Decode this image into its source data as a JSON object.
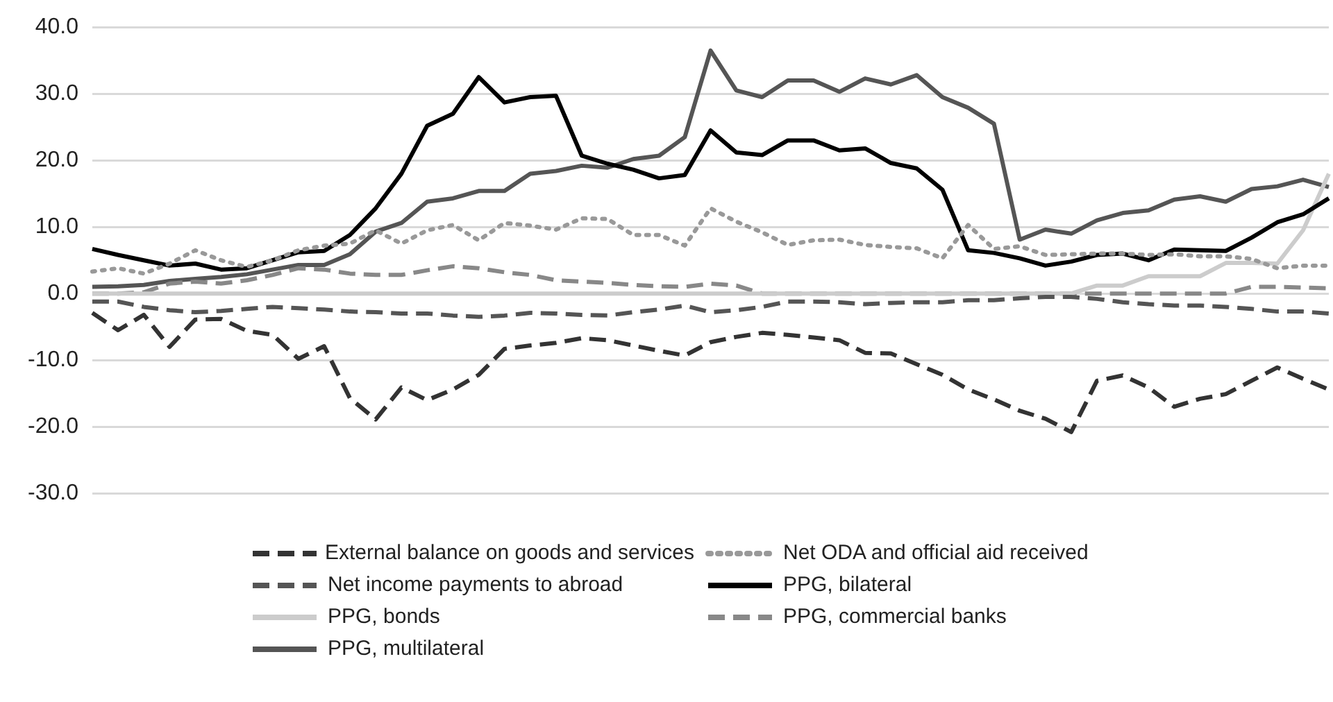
{
  "chart_data": {
    "type": "line",
    "categories": [
      null,
      null,
      null,
      null,
      null,
      null,
      null,
      null,
      null,
      null,
      null,
      null,
      null,
      null,
      null,
      null,
      null,
      null,
      null,
      null,
      null,
      null,
      null,
      null,
      null,
      null,
      null,
      null,
      null,
      null,
      null,
      null,
      null,
      null,
      null,
      null,
      null,
      null,
      null,
      null,
      null,
      null,
      null,
      null,
      null,
      null,
      null,
      null,
      null
    ],
    "ylim": [
      -30,
      40
    ],
    "yticks": [
      {
        "value": -30,
        "label": "-30.0"
      },
      {
        "value": -20,
        "label": "-20.0"
      },
      {
        "value": -10,
        "label": "-10.0"
      },
      {
        "value": 0,
        "label": "0.0"
      },
      {
        "value": 10,
        "label": "10.0"
      },
      {
        "value": 20,
        "label": "20.0"
      },
      {
        "value": 30,
        "label": "30.0"
      },
      {
        "value": 40,
        "label": "40.0"
      }
    ],
    "grid": "y",
    "legend": "bottom",
    "marker": "none",
    "series": [
      {
        "name": "External balance on goods and services",
        "color": "#333333",
        "line_style": "dashed",
        "values": [
          -2.9,
          -5.5,
          -3.2,
          -8.0,
          -3.9,
          -3.8,
          -5.6,
          -6.2,
          -9.8,
          -7.9,
          -15.7,
          -18.9,
          -14.1,
          -16.0,
          -14.4,
          -12.2,
          -8.3,
          -7.8,
          -7.4,
          -6.7,
          -7.0,
          -7.8,
          -8.6,
          -9.3,
          -7.3,
          -6.5,
          -5.9,
          -6.2,
          -6.6,
          -7.0,
          -8.9,
          -9.0,
          -10.6,
          -12.2,
          -14.4,
          -15.9,
          -17.6,
          -18.8,
          -20.8,
          -13.1,
          -12.3,
          -14.1,
          -17.0,
          -15.8,
          -15.1,
          -13.1,
          -11.1,
          -12.8,
          -14.4
        ]
      },
      {
        "name": "Net ODA and official aid received",
        "color": "#999999",
        "line_style": "dotted",
        "values": [
          3.3,
          3.8,
          3.0,
          4.5,
          6.5,
          5.0,
          4.0,
          5.0,
          6.5,
          7.2,
          7.5,
          9.5,
          7.5,
          9.5,
          10.3,
          8.0,
          10.6,
          10.2,
          9.6,
          11.3,
          11.2,
          8.8,
          8.8,
          7.2,
          12.8,
          10.8,
          9.2,
          7.3,
          8.0,
          8.1,
          7.3,
          7.0,
          6.8,
          5.3,
          10.3,
          6.7,
          7.1,
          5.8,
          5.9,
          6.0,
          6.0,
          5.8,
          5.9,
          5.6,
          5.6,
          5.2,
          3.8,
          4.2,
          4.2
        ]
      },
      {
        "name": "Net income payments to abroad",
        "color": "#555555",
        "line_style": "dashed",
        "values": [
          -1.2,
          -1.2,
          -2.0,
          -2.5,
          -2.8,
          -2.6,
          -2.3,
          -2.0,
          -2.2,
          -2.4,
          -2.7,
          -2.8,
          -3.0,
          -3.0,
          -3.3,
          -3.5,
          -3.3,
          -2.9,
          -3.0,
          -3.2,
          -3.3,
          -2.8,
          -2.4,
          -1.8,
          -2.8,
          -2.5,
          -2.0,
          -1.2,
          -1.2,
          -1.3,
          -1.6,
          -1.4,
          -1.3,
          -1.3,
          -1.0,
          -1.0,
          -0.7,
          -0.5,
          -0.5,
          -0.8,
          -1.3,
          -1.6,
          -1.8,
          -1.8,
          -2.0,
          -2.3,
          -2.7,
          -2.7,
          -3.0
        ]
      },
      {
        "name": "PPG, bilateral",
        "color": "#000000",
        "line_style": "solid",
        "values": [
          6.7,
          5.8,
          5.0,
          4.2,
          4.5,
          3.6,
          3.8,
          5.0,
          6.2,
          6.4,
          8.8,
          12.8,
          18.0,
          25.2,
          27.0,
          32.5,
          28.7,
          29.5,
          29.7,
          20.7,
          19.5,
          18.6,
          17.3,
          17.8,
          24.5,
          21.2,
          20.8,
          23.0,
          23.0,
          21.5,
          21.8,
          19.6,
          18.8,
          15.6,
          6.5,
          6.1,
          5.3,
          4.2,
          4.8,
          5.8,
          6.0,
          5.0,
          6.6,
          6.5,
          6.4,
          8.4,
          10.7,
          11.9,
          14.3
        ]
      },
      {
        "name": "PPG, bonds",
        "color": "#cccccc",
        "line_style": "solid",
        "values": [
          0,
          0,
          0,
          0,
          0,
          0,
          0,
          0,
          0,
          0,
          0,
          0,
          0,
          0,
          0,
          0,
          0,
          0,
          0,
          0,
          0,
          0,
          0,
          0,
          0,
          0,
          0,
          0,
          0,
          0,
          0,
          0,
          0,
          0,
          0,
          0,
          0,
          0,
          0,
          1.2,
          1.2,
          2.6,
          2.6,
          2.6,
          4.6,
          4.6,
          4.5,
          9.5,
          18.0
        ]
      },
      {
        "name": "PPG, commercial banks",
        "color": "#888888",
        "line_style": "dashed",
        "values": [
          0,
          0,
          0.2,
          1.5,
          1.8,
          1.5,
          2.0,
          2.8,
          3.8,
          3.6,
          3.0,
          2.8,
          2.8,
          3.5,
          4.1,
          3.8,
          3.2,
          2.8,
          2.0,
          1.8,
          1.6,
          1.3,
          1.1,
          1.0,
          1.5,
          1.2,
          0,
          0,
          0,
          0,
          0,
          0,
          0,
          0,
          0,
          0,
          0,
          0,
          0,
          0,
          0,
          0,
          0,
          0,
          0,
          1.0,
          1.0,
          0.9,
          0.8
        ]
      },
      {
        "name": "PPG, multilateral",
        "color": "#555555",
        "line_style": "solid",
        "values": [
          1.0,
          1.1,
          1.3,
          1.9,
          2.2,
          2.5,
          2.9,
          3.6,
          4.3,
          4.3,
          5.9,
          9.3,
          10.6,
          13.8,
          14.3,
          15.4,
          15.4,
          18.0,
          18.4,
          19.2,
          18.9,
          20.2,
          20.7,
          23.5,
          36.5,
          30.5,
          29.5,
          32.0,
          32.0,
          30.3,
          32.3,
          31.4,
          32.8,
          29.5,
          27.9,
          25.5,
          8.1,
          9.6,
          9.0,
          11.0,
          12.1,
          12.5,
          14.1,
          14.6,
          13.8,
          15.7,
          16.1,
          17.1,
          16.0
        ]
      }
    ]
  }
}
